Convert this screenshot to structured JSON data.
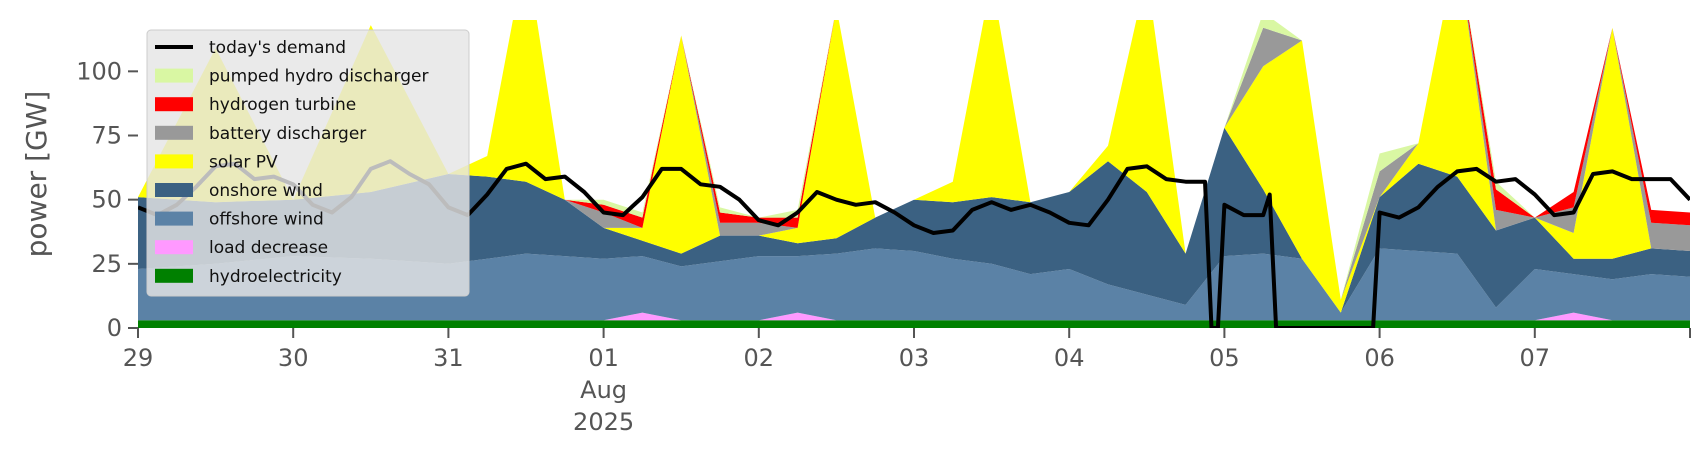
{
  "chart_data": {
    "type": "area",
    "ylabel": "power [GW]",
    "ylim": [
      0,
      120
    ],
    "yticks": [
      0,
      25,
      50,
      75,
      100
    ],
    "xlim": [
      "2025-07-29T00:00",
      "2025-08-08T00:00"
    ],
    "xticks": [
      {
        "x": "2025-07-29T00:00",
        "label": "29"
      },
      {
        "x": "2025-07-30T00:00",
        "label": "30"
      },
      {
        "x": "2025-07-31T00:00",
        "label": "31"
      },
      {
        "x": "2025-08-01T00:00",
        "label": "01",
        "label2": "Aug",
        "label3": "2025"
      },
      {
        "x": "2025-08-02T00:00",
        "label": "02"
      },
      {
        "x": "2025-08-03T00:00",
        "label": "03"
      },
      {
        "x": "2025-08-04T00:00",
        "label": "04"
      },
      {
        "x": "2025-08-05T00:00",
        "label": "05"
      },
      {
        "x": "2025-08-06T00:00",
        "label": "06"
      },
      {
        "x": "2025-08-07T00:00",
        "label": "07"
      }
    ],
    "legend_position": "top-left",
    "grid": false,
    "x": [
      "2025-07-29T00:00",
      "2025-07-29T12:00",
      "2025-07-30T00:00",
      "2025-07-30T12:00",
      "2025-07-31T00:00",
      "2025-07-31T06:00",
      "2025-07-31T12:00",
      "2025-07-31T18:00",
      "2025-08-01T00:00",
      "2025-08-01T06:00",
      "2025-08-01T12:00",
      "2025-08-01T18:00",
      "2025-08-02T00:00",
      "2025-08-02T06:00",
      "2025-08-02T12:00",
      "2025-08-02T18:00",
      "2025-08-03T00:00",
      "2025-08-03T06:00",
      "2025-08-03T12:00",
      "2025-08-03T18:00",
      "2025-08-04T00:00",
      "2025-08-04T06:00",
      "2025-08-04T12:00",
      "2025-08-04T18:00",
      "2025-08-05T00:00",
      "2025-08-05T06:00",
      "2025-08-05T12:00",
      "2025-08-05T18:00",
      "2025-08-06T00:00",
      "2025-08-06T06:00",
      "2025-08-06T12:00",
      "2025-08-06T18:00",
      "2025-08-07T00:00",
      "2025-08-07T06:00",
      "2025-08-07T12:00",
      "2025-08-07T18:00",
      "2025-08-08T00:00"
    ],
    "series": [
      {
        "name": "hydroelectricity",
        "color": "#008000",
        "values": [
          3,
          3,
          3,
          3,
          3,
          3,
          3,
          3,
          3,
          3,
          3,
          3,
          3,
          3,
          3,
          3,
          3,
          3,
          3,
          3,
          3,
          3,
          3,
          3,
          3,
          3,
          3,
          3,
          3,
          3,
          3,
          3,
          3,
          3,
          3,
          3,
          3
        ]
      },
      {
        "name": "load decrease",
        "color": "#ff99ff",
        "values": [
          0,
          0,
          0,
          0,
          0,
          0,
          0,
          0,
          0,
          3,
          0,
          0,
          0,
          3,
          0,
          0,
          0,
          0,
          0,
          0,
          0,
          0,
          0,
          0,
          0,
          0,
          0,
          0,
          0,
          0,
          0,
          0,
          0,
          3,
          0,
          0,
          0
        ]
      },
      {
        "name": "offshore wind",
        "color": "#5b82a6",
        "values": [
          20,
          22,
          25,
          24,
          22,
          24,
          26,
          25,
          24,
          22,
          21,
          23,
          25,
          22,
          26,
          28,
          27,
          24,
          22,
          18,
          20,
          14,
          10,
          6,
          25,
          26,
          24,
          3,
          28,
          27,
          26,
          5,
          20,
          15,
          16,
          18,
          17
        ]
      },
      {
        "name": "onshore wind",
        "color": "#3b6182",
        "values": [
          28,
          24,
          22,
          26,
          35,
          32,
          28,
          22,
          12,
          6,
          5,
          10,
          8,
          5,
          6,
          12,
          20,
          22,
          26,
          28,
          30,
          48,
          40,
          20,
          50,
          25,
          0,
          0,
          20,
          34,
          30,
          30,
          20,
          6,
          8,
          10,
          10
        ]
      },
      {
        "name": "solar PV",
        "color": "#ffff00",
        "values": [
          0,
          60,
          0,
          65,
          0,
          8,
          90,
          0,
          0,
          5,
          85,
          0,
          0,
          6,
          90,
          0,
          0,
          8,
          85,
          0,
          0,
          6,
          85,
          0,
          0,
          48,
          85,
          5,
          0,
          8,
          90,
          0,
          0,
          10,
          90,
          0,
          0
        ]
      },
      {
        "name": "battery discharger",
        "color": "#999999",
        "values": [
          0,
          0,
          0,
          0,
          0,
          0,
          0,
          0,
          6,
          0,
          0,
          5,
          5,
          0,
          0,
          0,
          0,
          0,
          0,
          0,
          0,
          0,
          0,
          0,
          0,
          15,
          0,
          0,
          10,
          0,
          0,
          8,
          0,
          10,
          0,
          10,
          10
        ]
      },
      {
        "name": "hydrogen turbine",
        "color": "#ff0000",
        "values": [
          0,
          0,
          0,
          0,
          0,
          0,
          0,
          0,
          3,
          4,
          0,
          4,
          2,
          4,
          0,
          0,
          0,
          0,
          0,
          0,
          0,
          0,
          0,
          0,
          0,
          0,
          0,
          0,
          0,
          0,
          0,
          8,
          0,
          6,
          0,
          5,
          5
        ]
      },
      {
        "name": "pumped hydro discharger",
        "color": "#d9f7a3",
        "values": [
          0,
          0,
          0,
          0,
          0,
          0,
          0,
          0,
          2,
          2,
          0,
          2,
          0,
          3,
          0,
          0,
          0,
          0,
          0,
          0,
          0,
          0,
          0,
          0,
          0,
          6,
          0,
          0,
          7,
          0,
          0,
          3,
          0,
          0,
          0,
          0,
          0
        ]
      }
    ],
    "demand": {
      "name": "today's demand",
      "color": "#000000",
      "x": [
        "2025-07-29T00:00",
        "2025-07-29T03:00",
        "2025-07-29T06:00",
        "2025-07-29T09:00",
        "2025-07-29T12:00",
        "2025-07-29T15:00",
        "2025-07-29T18:00",
        "2025-07-29T21:00",
        "2025-07-30T00:00",
        "2025-07-30T03:00",
        "2025-07-30T06:00",
        "2025-07-30T09:00",
        "2025-07-30T12:00",
        "2025-07-30T15:00",
        "2025-07-30T18:00",
        "2025-07-30T21:00",
        "2025-07-31T00:00",
        "2025-07-31T03:00",
        "2025-07-31T06:00",
        "2025-07-31T09:00",
        "2025-07-31T12:00",
        "2025-07-31T15:00",
        "2025-07-31T18:00",
        "2025-07-31T21:00",
        "2025-08-01T00:00",
        "2025-08-01T03:00",
        "2025-08-01T06:00",
        "2025-08-01T09:00",
        "2025-08-01T12:00",
        "2025-08-01T15:00",
        "2025-08-01T18:00",
        "2025-08-01T21:00",
        "2025-08-02T00:00",
        "2025-08-02T03:00",
        "2025-08-02T06:00",
        "2025-08-02T09:00",
        "2025-08-02T12:00",
        "2025-08-02T15:00",
        "2025-08-02T18:00",
        "2025-08-02T21:00",
        "2025-08-03T00:00",
        "2025-08-03T03:00",
        "2025-08-03T06:00",
        "2025-08-03T09:00",
        "2025-08-03T12:00",
        "2025-08-03T15:00",
        "2025-08-03T18:00",
        "2025-08-03T21:00",
        "2025-08-04T00:00",
        "2025-08-04T03:00",
        "2025-08-04T06:00",
        "2025-08-04T09:00",
        "2025-08-04T12:00",
        "2025-08-04T15:00",
        "2025-08-04T18:00",
        "2025-08-04T21:00",
        "2025-08-04T22:00",
        "2025-08-04T23:00",
        "2025-08-05T00:00",
        "2025-08-05T03:00",
        "2025-08-05T06:00",
        "2025-08-05T07:00",
        "2025-08-05T08:00",
        "2025-08-05T12:00",
        "2025-08-05T18:00",
        "2025-08-05T23:00",
        "2025-08-06T00:00",
        "2025-08-06T03:00",
        "2025-08-06T06:00",
        "2025-08-06T09:00",
        "2025-08-06T12:00",
        "2025-08-06T15:00",
        "2025-08-06T18:00",
        "2025-08-06T21:00",
        "2025-08-07T00:00",
        "2025-08-07T03:00",
        "2025-08-07T06:00",
        "2025-08-07T09:00",
        "2025-08-07T12:00",
        "2025-08-07T15:00",
        "2025-08-07T18:00",
        "2025-08-07T21:00",
        "2025-08-08T00:00"
      ],
      "values": [
        47,
        44,
        48,
        55,
        63,
        64,
        58,
        59,
        56,
        48,
        45,
        51,
        62,
        65,
        60,
        56,
        47,
        44,
        52,
        62,
        64,
        58,
        59,
        53,
        45,
        44,
        51,
        62,
        62,
        56,
        55,
        50,
        42,
        40,
        45,
        53,
        50,
        48,
        49,
        45,
        40,
        37,
        38,
        46,
        49,
        46,
        48,
        45,
        41,
        40,
        50,
        62,
        63,
        58,
        57,
        57,
        0,
        0,
        48,
        44,
        44,
        52,
        0,
        0,
        0,
        0,
        45,
        43,
        47,
        55,
        61,
        62,
        57,
        58,
        52,
        44,
        45,
        60,
        61,
        58,
        58,
        58,
        50
      ]
    },
    "legend": [
      "today's demand",
      "pumped hydro discharger",
      "hydrogen turbine",
      "battery discharger",
      "solar PV",
      "onshore wind",
      "offshore wind",
      "load decrease",
      "hydroelectricity"
    ]
  }
}
